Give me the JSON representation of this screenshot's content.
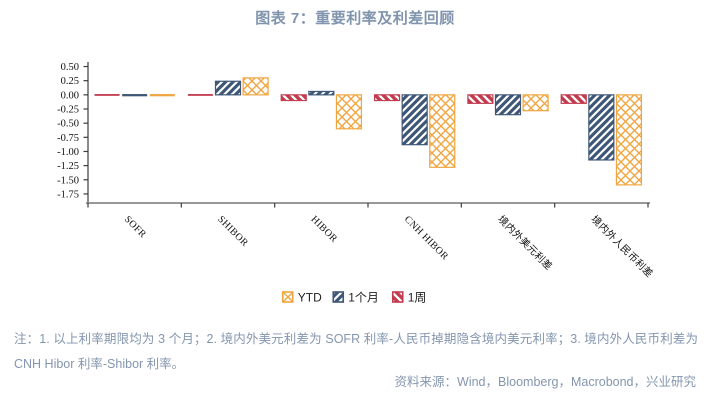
{
  "page": {
    "title": "图表 7：重要利率及利差回顾"
  },
  "chart_data": {
    "type": "bar",
    "title": "图表 7：重要利率及利差回顾",
    "categories": [
      "SOFR",
      "SHIBOR",
      "HIBOR",
      "CNH HIBOR",
      "境内外美元利差",
      "境内外人民币利差"
    ],
    "series": [
      {
        "name": "1周",
        "color": "#c23b4e",
        "pattern": "diag-back",
        "values": [
          -0.01,
          -0.01,
          -0.1,
          -0.1,
          -0.15,
          -0.15
        ]
      },
      {
        "name": "1个月",
        "color": "#3e5777",
        "pattern": "diag",
        "values": [
          -0.04,
          0.24,
          0.06,
          -0.88,
          -0.35,
          -1.15
        ]
      },
      {
        "name": "YTD",
        "color": "#f0a640",
        "pattern": "cross",
        "values": [
          -0.04,
          0.3,
          -0.6,
          -1.28,
          -0.28,
          -1.59
        ]
      }
    ],
    "legend_order": [
      "YTD",
      "1个月",
      "1周"
    ],
    "legend_position": "bottom",
    "grid": false,
    "ylim": [
      -1.91,
      0.58
    ],
    "yticks": [
      0.5,
      0.25,
      0.0,
      -0.25,
      -0.5,
      -0.75,
      -1.0,
      -1.25,
      -1.5,
      -1.75
    ],
    "xlabel": "",
    "ylabel": ""
  },
  "notes": {
    "text": "注：1. 以上利率期限均为 3 个月；2. 境内外美元利差为 SOFR 利率-人民币掉期隐含境内美元利率；3. 境内外人民币利差为 CNH Hibor 利率-Shibor 利率。"
  },
  "source": {
    "text": "资料来源：Wind，Bloomberg，Macrobond，兴业研究"
  }
}
